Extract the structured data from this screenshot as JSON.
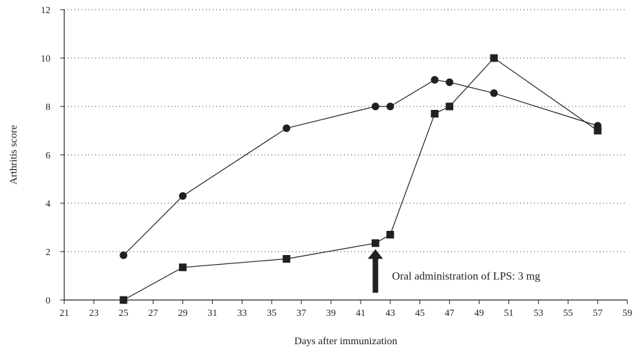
{
  "chart_data": {
    "type": "line",
    "title": "",
    "xlabel": "Days after immunization",
    "ylabel": "Arthritis score",
    "xlim": [
      21,
      59
    ],
    "ylim": [
      0,
      12
    ],
    "x_ticks": [
      21,
      23,
      25,
      27,
      29,
      31,
      33,
      35,
      37,
      39,
      41,
      43,
      45,
      47,
      49,
      51,
      53,
      55,
      57,
      59
    ],
    "y_ticks": [
      0,
      2,
      4,
      6,
      8,
      10,
      12
    ],
    "grid": "horizontal dotted",
    "legend": "none",
    "series": [
      {
        "marker": "circle",
        "color": "#231f20",
        "x": [
          25,
          29,
          36,
          42,
          43,
          46,
          47,
          50,
          57
        ],
        "y": [
          1.85,
          4.3,
          7.1,
          8.0,
          8.0,
          9.1,
          9.0,
          8.55,
          7.2
        ]
      },
      {
        "marker": "square",
        "color": "#231f20",
        "x": [
          25,
          29,
          36,
          42,
          43,
          46,
          47,
          50,
          57
        ],
        "y": [
          0.0,
          1.35,
          1.7,
          2.35,
          2.7,
          7.7,
          8.0,
          10.0,
          7.0
        ]
      }
    ],
    "annotation": {
      "text": "Oral administration of LPS: 3 mg",
      "x": 42,
      "y_from": 0.3,
      "y_to": 2.1
    }
  }
}
